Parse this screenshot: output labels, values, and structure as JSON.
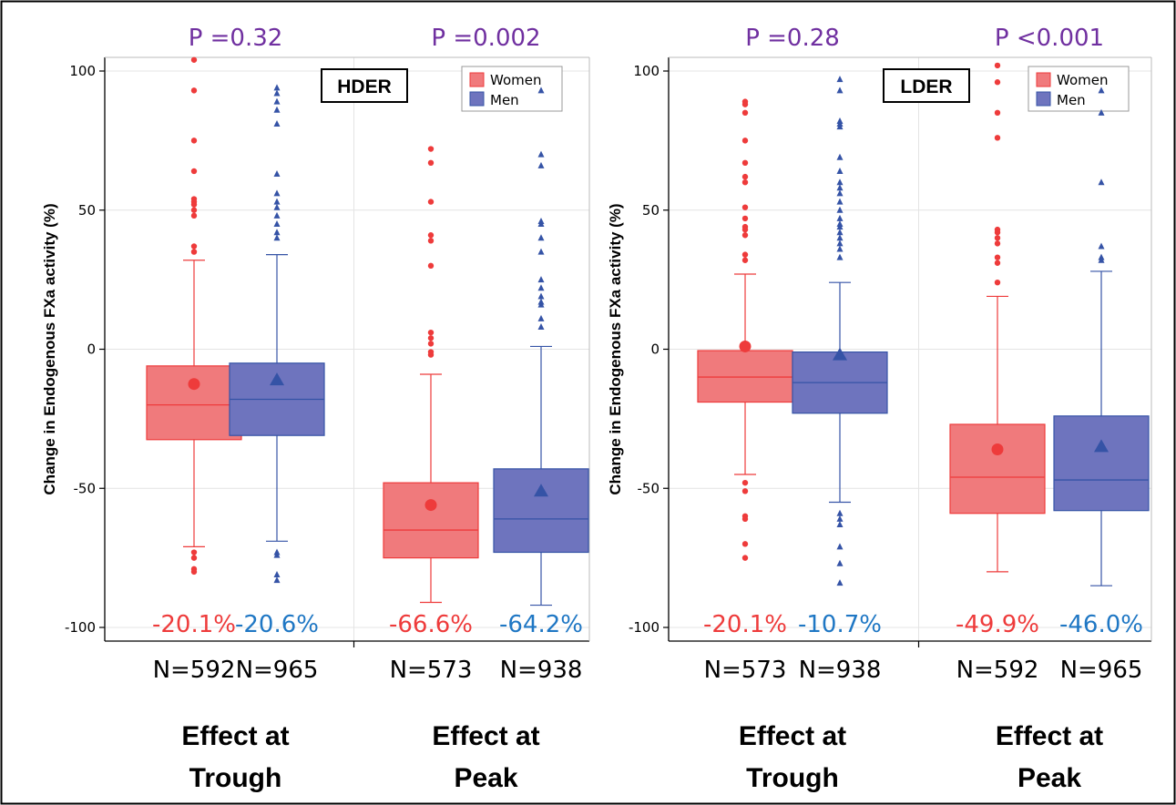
{
  "colors": {
    "women": "#ee3b3b",
    "women_fill": "#f07a7c",
    "men": "#3553a6",
    "men_fill": "#6e74be",
    "men_pct": "#1f77c4",
    "pvalue": "#7030a0",
    "grid": "#e4e4e4"
  },
  "chart_data": [
    {
      "type": "box",
      "label_box": "HDER",
      "ylabel": "Change in Endogenous FXa activity (%)",
      "ylim": [
        -100,
        100
      ],
      "yticks": [
        -100,
        -50,
        0,
        50,
        100
      ],
      "legend": {
        "position": "top-right",
        "entries": [
          "Women",
          "Men"
        ]
      },
      "grid": true,
      "groups": [
        {
          "name_lines": [
            "Effect at",
            "Trough"
          ],
          "pvalue": "P =0.32",
          "boxes": [
            {
              "series": "Women",
              "n_label": "N=592",
              "pct_label": "-20.1%",
              "q1": -32.5,
              "median": -20,
              "q3": -6,
              "whisker_low": -71,
              "whisker_high": 32,
              "mean": -12.5,
              "outliers": [
                104,
                93,
                75,
                64,
                54,
                53,
                52,
                50,
                48,
                37,
                35,
                -73,
                -75,
                -79,
                -80
              ]
            },
            {
              "series": "Men",
              "n_label": "N=965",
              "pct_label": "-20.6%",
              "q1": -31,
              "median": -18,
              "q3": -5,
              "whisker_low": -69,
              "whisker_high": 34,
              "mean": -11,
              "outliers": [
                94,
                92,
                89,
                86,
                81,
                63,
                56,
                53,
                51,
                48,
                45,
                42,
                40,
                -73,
                -74,
                -81,
                -83
              ]
            }
          ]
        },
        {
          "name_lines": [
            "Effect at",
            "Peak"
          ],
          "pvalue": "P =0.002",
          "boxes": [
            {
              "series": "Women",
              "n_label": "N=573",
              "pct_label": "-66.6%",
              "q1": -75,
              "median": -65,
              "q3": -48,
              "whisker_low": -91,
              "whisker_high": -9,
              "mean": -56,
              "outliers": [
                72,
                67,
                53,
                41,
                39,
                30,
                6,
                4,
                2,
                -1,
                -2
              ]
            },
            {
              "series": "Men",
              "n_label": "N=938",
              "pct_label": "-64.2%",
              "q1": -73,
              "median": -61,
              "q3": -43,
              "whisker_low": -92,
              "whisker_high": 1,
              "mean": -51,
              "outliers": [
                93,
                70,
                66,
                46,
                45,
                40,
                35,
                25,
                22,
                19,
                17,
                16,
                11,
                8
              ]
            }
          ]
        }
      ]
    },
    {
      "type": "box",
      "label_box": "LDER",
      "ylabel": "Change in Endogenous FXa activity (%)",
      "ylim": [
        -100,
        100
      ],
      "yticks": [
        -100,
        -50,
        0,
        50,
        100
      ],
      "legend": {
        "position": "top-right",
        "entries": [
          "Women",
          "Men"
        ]
      },
      "grid": true,
      "groups": [
        {
          "name_lines": [
            "Effect at",
            "Trough"
          ],
          "pvalue": "P =0.28",
          "boxes": [
            {
              "series": "Women",
              "n_label": "N=573",
              "pct_label": "-20.1%",
              "q1": -19,
              "median": -10,
              "q3": -0.5,
              "whisker_low": -45,
              "whisker_high": 27,
              "mean": 1,
              "outliers": [
                89,
                88,
                85,
                75,
                67,
                62,
                60,
                51,
                47,
                44,
                43,
                41,
                34,
                32,
                -48,
                -51,
                -60,
                -61,
                -70,
                -75
              ]
            },
            {
              "series": "Men",
              "n_label": "N=938",
              "pct_label": "-10.7%",
              "q1": -23,
              "median": -12,
              "q3": -1,
              "whisker_low": -55,
              "whisker_high": 24,
              "mean": -2,
              "outliers": [
                97,
                93,
                82,
                81,
                80,
                69,
                64,
                60,
                58,
                56,
                53,
                50,
                47,
                45,
                44,
                42,
                40,
                38,
                36,
                33,
                -59,
                -61,
                -63,
                -71,
                -77,
                -84
              ]
            }
          ]
        },
        {
          "name_lines": [
            "Effect at",
            "Peak"
          ],
          "pvalue": "P <0.001",
          "boxes": [
            {
              "series": "Women",
              "n_label": "N=592",
              "pct_label": "-49.9%",
              "q1": -59,
              "median": -46,
              "q3": -27,
              "whisker_low": -80,
              "whisker_high": 19,
              "mean": -36,
              "outliers": [
                102,
                96,
                85,
                76,
                43,
                42,
                40,
                38,
                33,
                31,
                24
              ]
            },
            {
              "series": "Men",
              "n_label": "N=965",
              "pct_label": "-46.0%",
              "q1": -58,
              "median": -47,
              "q3": -24,
              "whisker_low": -85,
              "whisker_high": 28,
              "mean": -35,
              "outliers": [
                93,
                85,
                60,
                37,
                33,
                32
              ]
            }
          ]
        }
      ]
    }
  ]
}
